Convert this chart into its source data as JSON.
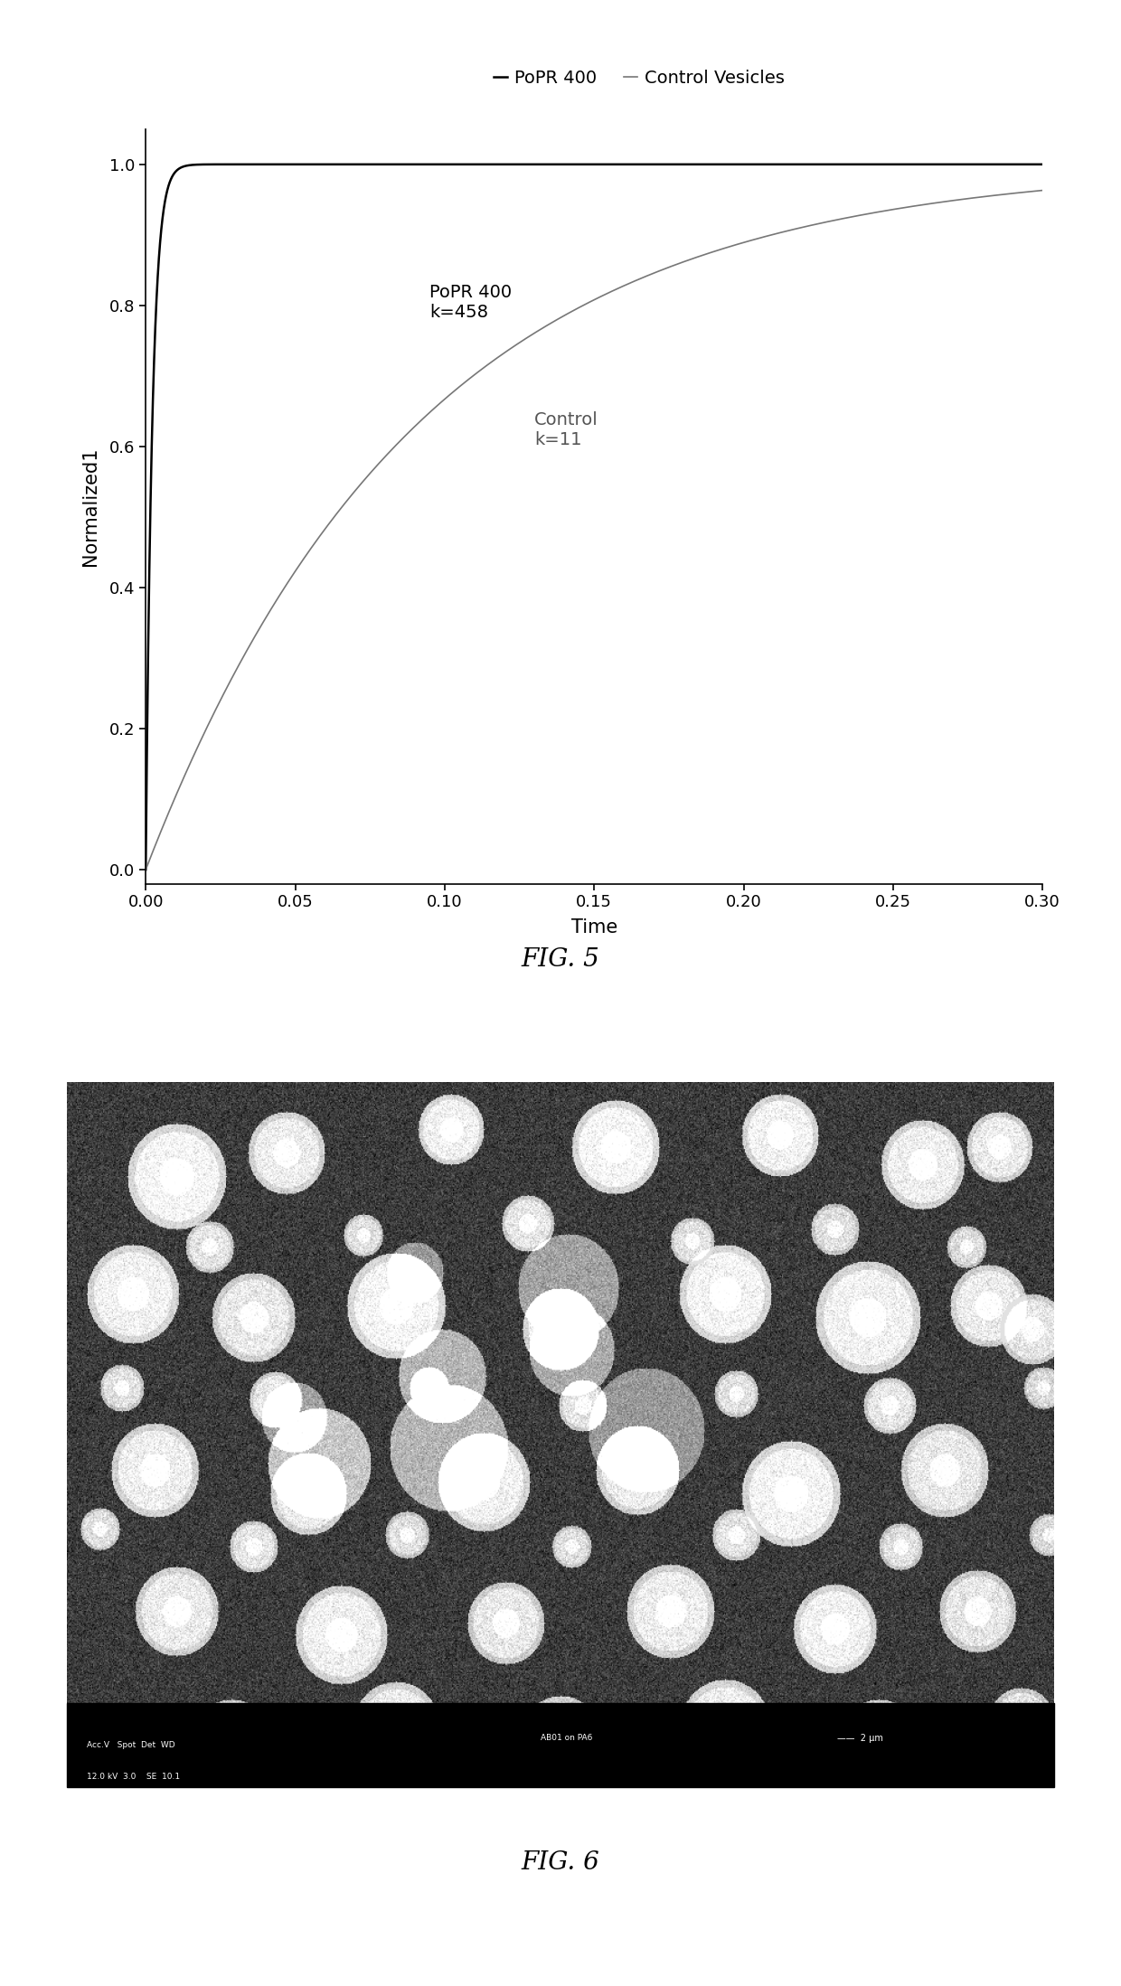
{
  "fig5": {
    "title": "",
    "xlabel": "Time",
    "ylabel": "Normalized1",
    "xlim": [
      0.0,
      0.3
    ],
    "ylim": [
      -0.02,
      1.05
    ],
    "xticks": [
      0.0,
      0.05,
      0.1,
      0.15,
      0.2,
      0.25,
      0.3
    ],
    "yticks": [
      0.0,
      0.2,
      0.4,
      0.6,
      0.8,
      1.0
    ],
    "popr_k": 458,
    "control_k": 11,
    "popr_color": "#000000",
    "control_color": "#777777",
    "popr_label": "PoPR 400",
    "control_label": "Control Vesicles",
    "annotation_popr": "PoPR 400\nk=458",
    "annotation_control": "Control\nk=11",
    "legend_marker": "·",
    "fig5_caption": "FIG. 5"
  },
  "fig6": {
    "caption": "FIG. 6",
    "image_placeholder": true
  },
  "background_color": "#ffffff",
  "fig_width": 12.4,
  "fig_height": 21.97,
  "dpi": 100
}
